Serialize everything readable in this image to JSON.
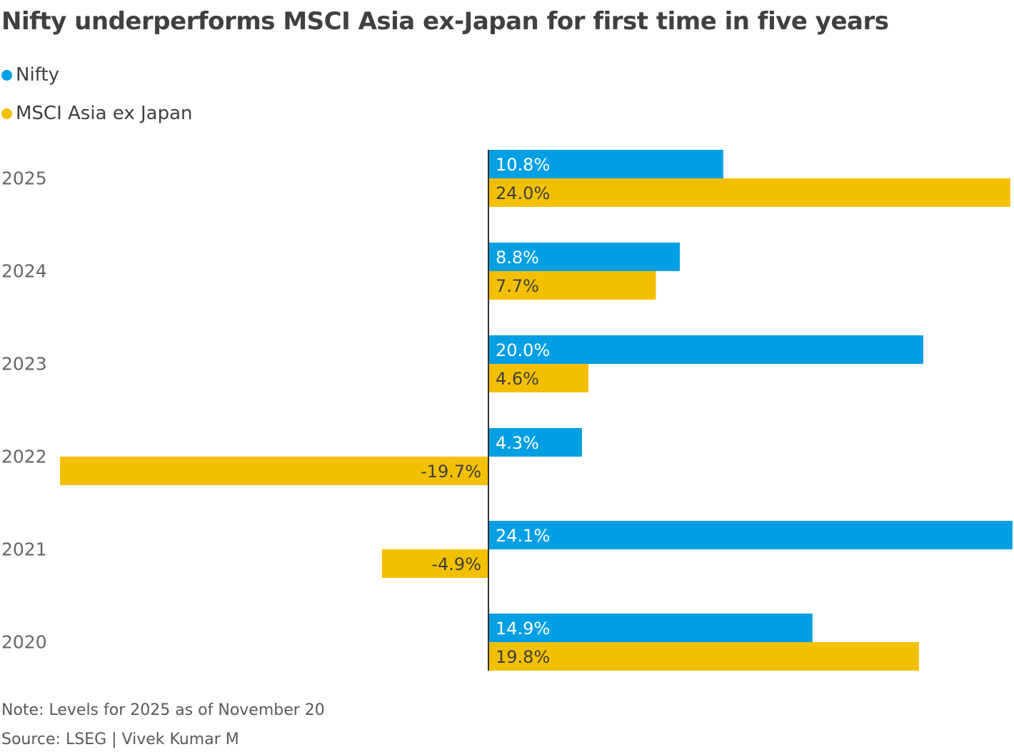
{
  "chart_data": {
    "type": "bar",
    "orientation": "horizontal",
    "title": "Nifty underperforms MSCI Asia ex-Japan for first time in five years",
    "categories": [
      "2025",
      "2024",
      "2023",
      "2022",
      "2021",
      "2020"
    ],
    "series": [
      {
        "name": "Nifty",
        "color": "#009fe3",
        "values": [
          10.8,
          8.8,
          20.0,
          4.3,
          24.1,
          14.9
        ],
        "labels": [
          "10.8%",
          "8.8%",
          "20.0%",
          "4.3%",
          "24.1%",
          "14.9%"
        ]
      },
      {
        "name": "MSCI Asia ex Japan",
        "color": "#f2c000",
        "values": [
          24.0,
          7.7,
          4.6,
          -19.7,
          -4.9,
          19.8
        ],
        "labels": [
          "24.0%",
          "7.7%",
          "4.6%",
          "-19.7%",
          "-4.9%",
          "19.8%"
        ]
      }
    ],
    "xlim": [
      -19.7,
      24.1
    ],
    "legend_position": "top-left",
    "grid": false,
    "note": "Note: Levels for 2025 as of November 20",
    "source": "Source: LSEG | Vivek Kumar M"
  }
}
